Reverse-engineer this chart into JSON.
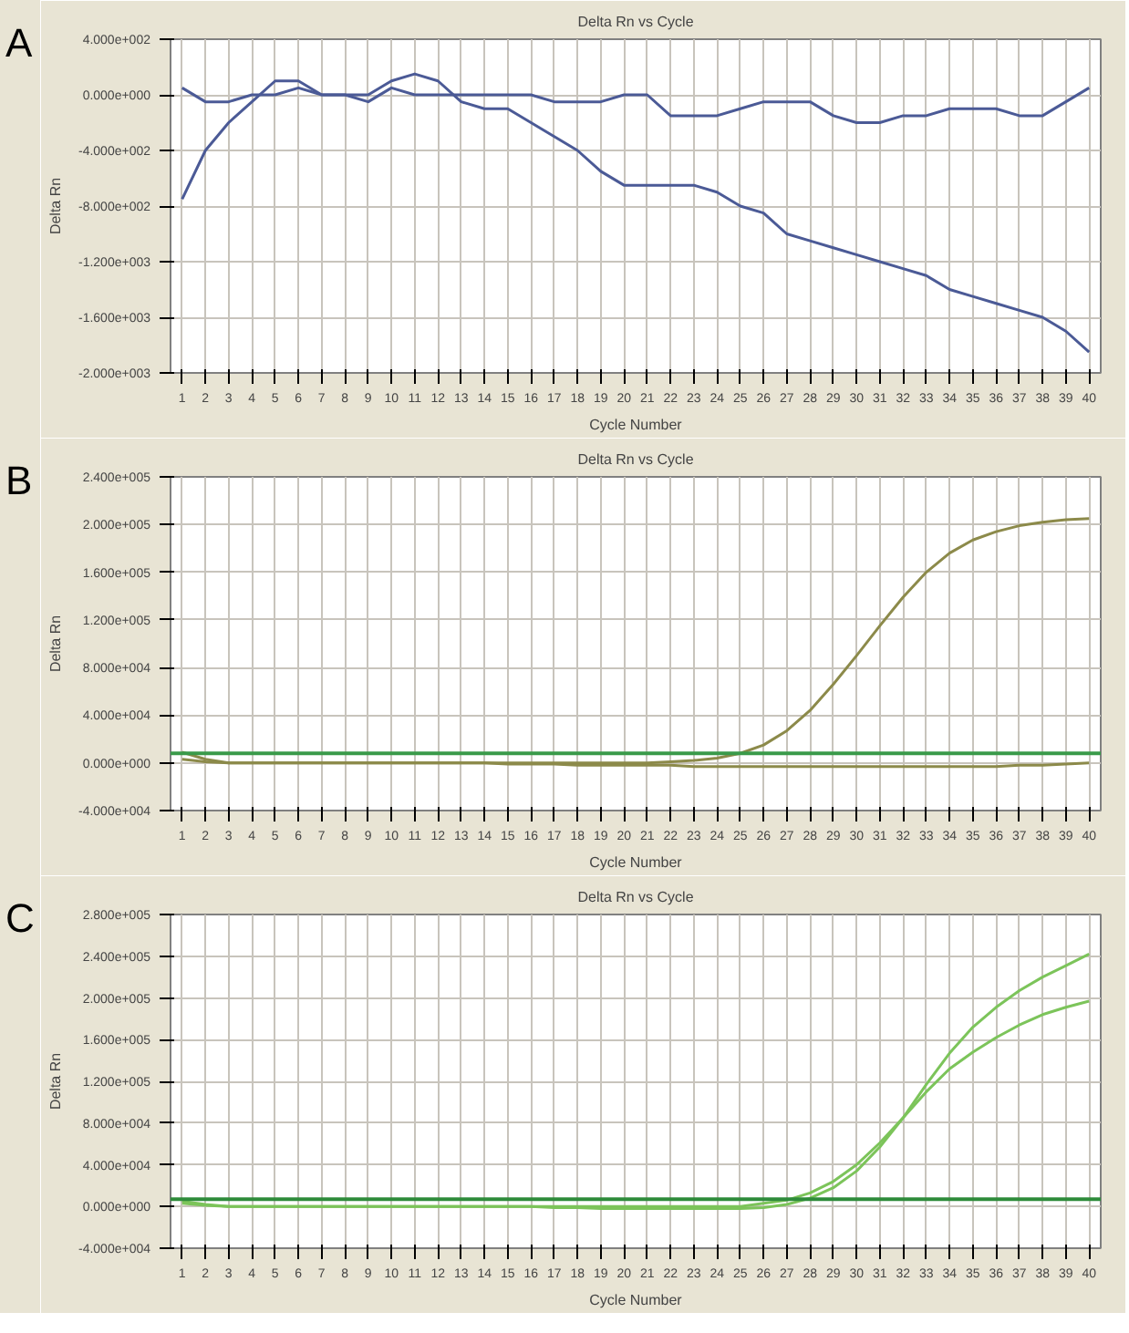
{
  "chart_data": [
    {
      "type": "line",
      "title": "Delta Rn vs Cycle",
      "xlabel": "Cycle Number",
      "ylabel": "Delta Rn",
      "annotations": [
        "A"
      ],
      "x": [
        1,
        2,
        3,
        4,
        5,
        6,
        7,
        8,
        9,
        10,
        11,
        12,
        13,
        14,
        15,
        16,
        17,
        18,
        19,
        20,
        21,
        22,
        23,
        24,
        25,
        26,
        27,
        28,
        29,
        30,
        31,
        32,
        33,
        34,
        35,
        36,
        37,
        38,
        39,
        40
      ],
      "series": [
        {
          "color": "#4b5a96",
          "values": [
            -750,
            -400,
            -200,
            -50,
            100,
            100,
            0,
            0,
            0,
            100,
            150,
            100,
            -50,
            -100,
            -100,
            -200,
            -300,
            -400,
            -550,
            -650,
            -650,
            -650,
            -650,
            -700,
            -800,
            -850,
            -1000,
            -1050,
            -1100,
            -1150,
            -1200,
            -1250,
            -1300,
            -1400,
            -1450,
            -1500,
            -1550,
            -1600,
            -1700,
            -1850
          ]
        },
        {
          "color": "#4b5a96",
          "values": [
            50,
            -50,
            -50,
            0,
            0,
            50,
            0,
            0,
            -50,
            50,
            0,
            0,
            0,
            0,
            0,
            0,
            -50,
            -50,
            -50,
            0,
            0,
            -150,
            -150,
            -150,
            -100,
            -50,
            -50,
            -50,
            -150,
            -200,
            -200,
            -150,
            -150,
            -100,
            -100,
            -100,
            -150,
            -150,
            -50,
            50
          ]
        }
      ],
      "xlim": [
        0.5,
        40.5
      ],
      "xticks": [
        1,
        2,
        3,
        4,
        5,
        6,
        7,
        8,
        9,
        10,
        11,
        12,
        13,
        14,
        15,
        16,
        17,
        18,
        19,
        20,
        21,
        22,
        23,
        24,
        25,
        26,
        27,
        28,
        29,
        30,
        31,
        32,
        33,
        34,
        35,
        36,
        37,
        38,
        39,
        40
      ],
      "ylim": [
        -2000,
        400
      ],
      "yticks": [
        {
          "value": 400,
          "label": "4.000e+002"
        },
        {
          "value": 0,
          "label": "0.000e+000"
        },
        {
          "value": -400,
          "label": "-4.000e+002"
        },
        {
          "value": -800,
          "label": "-8.000e+002"
        },
        {
          "value": -1200,
          "label": "-1.200e+003"
        },
        {
          "value": -1600,
          "label": "-1.600e+003"
        },
        {
          "value": -2000,
          "label": "-2.000e+003"
        }
      ],
      "grid": true,
      "line_style": "solid"
    },
    {
      "type": "line",
      "title": "Delta Rn vs Cycle",
      "xlabel": "Cycle Number",
      "ylabel": "Delta Rn",
      "annotations": [
        "B"
      ],
      "x": [
        1,
        2,
        3,
        4,
        5,
        6,
        7,
        8,
        9,
        10,
        11,
        12,
        13,
        14,
        15,
        16,
        17,
        18,
        19,
        20,
        21,
        22,
        23,
        24,
        25,
        26,
        27,
        28,
        29,
        30,
        31,
        32,
        33,
        34,
        35,
        36,
        37,
        38,
        39,
        40
      ],
      "series": [
        {
          "color": "#8c8a4a",
          "values": [
            3000,
            1000,
            0,
            0,
            0,
            0,
            0,
            0,
            0,
            0,
            0,
            0,
            0,
            0,
            0,
            0,
            0,
            0,
            0,
            0,
            0,
            1000,
            2000,
            4000,
            8000,
            15000,
            27000,
            44000,
            66000,
            90000,
            115000,
            139000,
            160000,
            176000,
            187000,
            194000,
            199000,
            202000,
            204000,
            205000
          ]
        },
        {
          "color": "#8c8a4a",
          "values": [
            9000,
            3000,
            0,
            0,
            0,
            0,
            0,
            0,
            0,
            0,
            0,
            0,
            0,
            0,
            -1000,
            -1000,
            -1000,
            -2000,
            -2000,
            -2000,
            -2000,
            -2000,
            -3000,
            -3000,
            -3000,
            -3000,
            -3000,
            -3000,
            -3000,
            -3000,
            -3000,
            -3000,
            -3000,
            -3000,
            -3000,
            -3000,
            -2000,
            -2000,
            -1000,
            0
          ]
        }
      ],
      "ref_lines": [
        {
          "axis": "y",
          "value": 8000,
          "color": "#3a9a4a"
        }
      ],
      "xlim": [
        0.5,
        40.5
      ],
      "xticks": [
        1,
        2,
        3,
        4,
        5,
        6,
        7,
        8,
        9,
        10,
        11,
        12,
        13,
        14,
        15,
        16,
        17,
        18,
        19,
        20,
        21,
        22,
        23,
        24,
        25,
        26,
        27,
        28,
        29,
        30,
        31,
        32,
        33,
        34,
        35,
        36,
        37,
        38,
        39,
        40
      ],
      "ylim": [
        -40000,
        240000
      ],
      "yticks": [
        {
          "value": 240000,
          "label": "2.400e+005"
        },
        {
          "value": 200000,
          "label": "2.000e+005"
        },
        {
          "value": 160000,
          "label": "1.600e+005"
        },
        {
          "value": 120000,
          "label": "1.200e+005"
        },
        {
          "value": 80000,
          "label": "8.000e+004"
        },
        {
          "value": 40000,
          "label": "4.000e+004"
        },
        {
          "value": 0,
          "label": "0.000e+000"
        },
        {
          "value": -40000,
          "label": "-4.000e+004"
        }
      ],
      "grid": true,
      "line_style": "solid"
    },
    {
      "type": "line",
      "title": "Delta Rn vs Cycle",
      "xlabel": "Cycle Number",
      "ylabel": "Delta Rn",
      "annotations": [
        "C"
      ],
      "x": [
        1,
        2,
        3,
        4,
        5,
        6,
        7,
        8,
        9,
        10,
        11,
        12,
        13,
        14,
        15,
        16,
        17,
        18,
        19,
        20,
        21,
        22,
        23,
        24,
        25,
        26,
        27,
        28,
        29,
        30,
        31,
        32,
        33,
        34,
        35,
        36,
        37,
        38,
        39,
        40
      ],
      "series": [
        {
          "color": "#7cc45a",
          "values": [
            5000,
            2000,
            0,
            0,
            0,
            0,
            0,
            0,
            0,
            0,
            0,
            0,
            0,
            0,
            0,
            0,
            -1000,
            -1000,
            -2000,
            -2000,
            -2000,
            -2000,
            -2000,
            -2000,
            -2000,
            -1000,
            2000,
            8000,
            18000,
            34000,
            57000,
            85000,
            117000,
            147000,
            172000,
            191000,
            207000,
            220000,
            231000,
            242000
          ]
        },
        {
          "color": "#7cc45a",
          "values": [
            3000,
            1000,
            0,
            0,
            0,
            0,
            0,
            0,
            0,
            0,
            0,
            0,
            0,
            0,
            0,
            0,
            0,
            0,
            0,
            0,
            0,
            0,
            0,
            0,
            0,
            3000,
            6000,
            13000,
            24000,
            40000,
            61000,
            85000,
            110000,
            132000,
            148000,
            162000,
            174000,
            184000,
            191000,
            197000
          ]
        }
      ],
      "ref_lines": [
        {
          "axis": "y",
          "value": 7000,
          "color": "#2e8b3a"
        }
      ],
      "xlim": [
        0.5,
        40.5
      ],
      "xticks": [
        1,
        2,
        3,
        4,
        5,
        6,
        7,
        8,
        9,
        10,
        11,
        12,
        13,
        14,
        15,
        16,
        17,
        18,
        19,
        20,
        21,
        22,
        23,
        24,
        25,
        26,
        27,
        28,
        29,
        30,
        31,
        32,
        33,
        34,
        35,
        36,
        37,
        38,
        39,
        40
      ],
      "ylim": [
        -40000,
        280000
      ],
      "yticks": [
        {
          "value": 280000,
          "label": "2.800e+005"
        },
        {
          "value": 240000,
          "label": "2.400e+005"
        },
        {
          "value": 200000,
          "label": "2.000e+005"
        },
        {
          "value": 160000,
          "label": "1.600e+005"
        },
        {
          "value": 120000,
          "label": "1.200e+005"
        },
        {
          "value": 80000,
          "label": "8.000e+004"
        },
        {
          "value": 40000,
          "label": "4.000e+004"
        },
        {
          "value": 0,
          "label": "0.000e+000"
        },
        {
          "value": -40000,
          "label": "-4.000e+004"
        }
      ],
      "grid": true,
      "line_style": "solid"
    }
  ]
}
